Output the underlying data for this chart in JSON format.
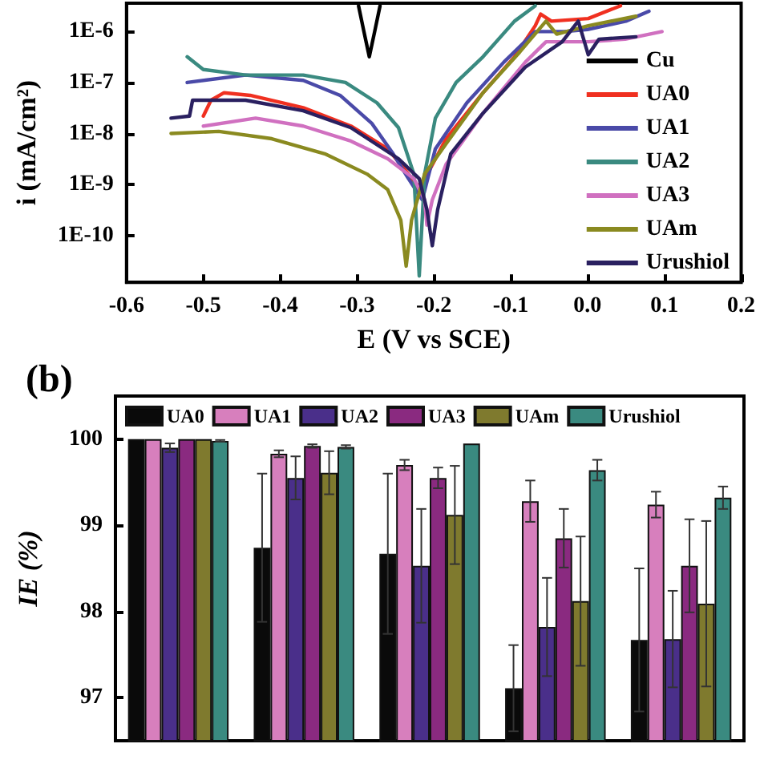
{
  "chart_data": [
    {
      "type": "line",
      "xlabel": "E (V vs SCE)",
      "ylabel": "i (mA/cm²)",
      "log": "y",
      "grid": false,
      "legend": "bottom right",
      "marker": "none",
      "line_style": "solid",
      "xlim": [
        -0.6,
        0.2
      ],
      "xticks": [
        -0.6,
        -0.5,
        -0.4,
        -0.3,
        -0.2,
        -0.1,
        {
          "value": 0,
          "label": "0.0"
        },
        0.1,
        0.2
      ],
      "ylim": [
        1.2e-11,
        3.6e-06
      ],
      "yticks": [
        {
          "value": 1e-10,
          "label": "1E-10"
        },
        {
          "value": 1e-09,
          "label": "1E-9"
        },
        {
          "value": 1e-08,
          "label": "1E-8"
        },
        {
          "value": 1e-07,
          "label": "1E-7"
        },
        {
          "value": 1e-06,
          "label": "1E-6"
        }
      ],
      "series": [
        {
          "name": "Cu",
          "color": "#000000",
          "x": [
            -0.298,
            -0.291,
            -0.284,
            -0.277,
            -0.27
          ],
          "values": [
            3.2e-06,
            1e-06,
            3.2e-07,
            1e-06,
            3.2e-06
          ]
        },
        {
          "name": "UA0",
          "color": "#f03020",
          "x": [
            -0.5,
            -0.49,
            -0.473,
            -0.439,
            -0.37,
            -0.308,
            -0.26,
            -0.233,
            -0.222,
            -0.212,
            -0.205,
            -0.184,
            -0.136,
            -0.095,
            -0.068,
            -0.061,
            -0.047,
            0.001,
            0.043
          ],
          "values": [
            2.2e-08,
            4.5e-08,
            6.3e-08,
            5.6e-08,
            3.2e-08,
            1.4e-08,
            5e-09,
            1.6e-09,
            8.9e-10,
            1.3e-09,
            2e-09,
            7.9e-09,
            6.3e-08,
            3.2e-07,
            1.3e-06,
            2.2e-06,
            1.6e-06,
            1.8e-06,
            3.2e-06
          ]
        },
        {
          "name": "UA1",
          "color": "#4a4aa8",
          "x": [
            -0.521,
            -0.445,
            -0.37,
            -0.322,
            -0.281,
            -0.253,
            -0.233,
            -0.215,
            -0.198,
            -0.157,
            -0.109,
            -0.068,
            -0.03,
            0.0,
            0.05,
            0.08
          ],
          "values": [
            1e-07,
            1.4e-07,
            1.1e-07,
            5.6e-08,
            1.6e-08,
            4e-09,
            1.3e-09,
            5e-10,
            5e-09,
            4e-08,
            2.5e-07,
            1e-06,
            1e-06,
            1.1e-06,
            1.6e-06,
            2.5e-06
          ]
        },
        {
          "name": "UA2",
          "color": "#3a8a80",
          "x": [
            -0.521,
            -0.5,
            -0.445,
            -0.37,
            -0.315,
            -0.274,
            -0.246,
            -0.226,
            -0.219,
            -0.212,
            -0.198,
            -0.171,
            -0.136,
            -0.095,
            -0.068
          ],
          "values": [
            3.2e-07,
            1.8e-07,
            1.4e-07,
            1.4e-07,
            1e-07,
            4e-08,
            1.3e-08,
            1.6e-09,
            1.6e-11,
            1.6e-09,
            2e-08,
            1e-07,
            3.2e-07,
            1.6e-06,
            3.2e-06
          ]
        },
        {
          "name": "UA3",
          "color": "#d070c0",
          "x": [
            -0.5,
            -0.432,
            -0.37,
            -0.308,
            -0.26,
            -0.226,
            -0.212,
            -0.209,
            -0.202,
            -0.184,
            -0.136,
            -0.081,
            -0.054,
            -0.033,
            0.001,
            0.049,
            0.097
          ],
          "values": [
            1.4e-08,
            2e-08,
            1.4e-08,
            7.1e-09,
            3.2e-09,
            1.3e-09,
            5e-10,
            1.6e-10,
            5e-10,
            2.5e-09,
            2.5e-08,
            2.5e-07,
            6.3e-07,
            6.3e-07,
            6.3e-07,
            7.1e-07,
            1e-06
          ]
        },
        {
          "name": "UAm",
          "color": "#8a8a20",
          "x": [
            -0.542,
            -0.48,
            -0.411,
            -0.342,
            -0.287,
            -0.26,
            -0.243,
            -0.236,
            -0.229,
            -0.212,
            -0.184,
            -0.136,
            -0.088,
            -0.054,
            -0.04,
            0.001,
            0.063
          ],
          "values": [
            1e-08,
            1.1e-08,
            7.9e-09,
            4e-09,
            1.6e-09,
            7.9e-10,
            2e-10,
            2.5e-11,
            2e-10,
            1.6e-09,
            6.3e-09,
            6.3e-08,
            4e-07,
            1.6e-06,
            8.9e-07,
            1.3e-06,
            2e-06
          ]
        },
        {
          "name": "Urushiol",
          "color": "#2a2060",
          "x": [
            -0.542,
            -0.518,
            -0.514,
            -0.507,
            -0.445,
            -0.37,
            -0.308,
            -0.246,
            -0.219,
            -0.209,
            -0.202,
            -0.195,
            -0.178,
            -0.136,
            -0.081,
            -0.033,
            -0.012,
            0.001,
            0.015,
            0.063
          ],
          "values": [
            2e-08,
            2.2e-08,
            4.5e-08,
            4.5e-08,
            4.5e-08,
            2.8e-08,
            1.3e-08,
            3.2e-09,
            1.3e-09,
            3.2e-10,
            6.3e-11,
            3.2e-10,
            4e-09,
            2.5e-08,
            2e-07,
            6.3e-07,
            1.6e-06,
            3.5e-07,
            7.1e-07,
            7.9e-07
          ]
        }
      ]
    },
    {
      "type": "bar",
      "ylabel": "IE (%)",
      "annotations": [
        "(b)"
      ],
      "grid": false,
      "legend": "top",
      "categories": [
        null,
        null,
        null,
        null,
        null
      ],
      "ylim": [
        96.5,
        100.5
      ],
      "yticks": [
        97,
        98,
        99,
        100
      ],
      "series": [
        {
          "name": "UA0",
          "color": "#0a0a0a",
          "values": [
            100,
            98.74,
            98.67,
            97.11,
            97.67
          ],
          "errors": [
            null,
            0.86,
            0.93,
            0.5,
            0.83
          ]
        },
        {
          "name": "UA1",
          "color": "#d77fbd",
          "values": [
            100,
            99.83,
            99.7,
            99.28,
            99.24
          ],
          "errors": [
            null,
            0.04,
            0.06,
            0.24,
            0.15
          ]
        },
        {
          "name": "UA2",
          "color": "#4a2f8a",
          "values": [
            99.9,
            99.55,
            98.53,
            97.82,
            97.68
          ],
          "errors": [
            0.05,
            0.25,
            0.66,
            0.57,
            0.56
          ]
        },
        {
          "name": "UA3",
          "color": "#8a2a80",
          "values": [
            100,
            99.92,
            99.55,
            98.85,
            98.53
          ],
          "errors": [
            null,
            0.02,
            0.12,
            0.34,
            0.54
          ]
        },
        {
          "name": "UAm",
          "color": "#7f7a2e",
          "values": [
            100,
            99.61,
            99.12,
            98.12,
            98.09
          ],
          "errors": [
            null,
            0.25,
            0.57,
            0.75,
            0.96
          ]
        },
        {
          "name": "Urushiol",
          "color": "#3a8a80",
          "values": [
            99.98,
            99.91,
            99.95,
            99.64,
            99.32
          ],
          "errors": [
            0.01,
            0.02,
            null,
            0.12,
            0.13
          ]
        }
      ]
    }
  ]
}
